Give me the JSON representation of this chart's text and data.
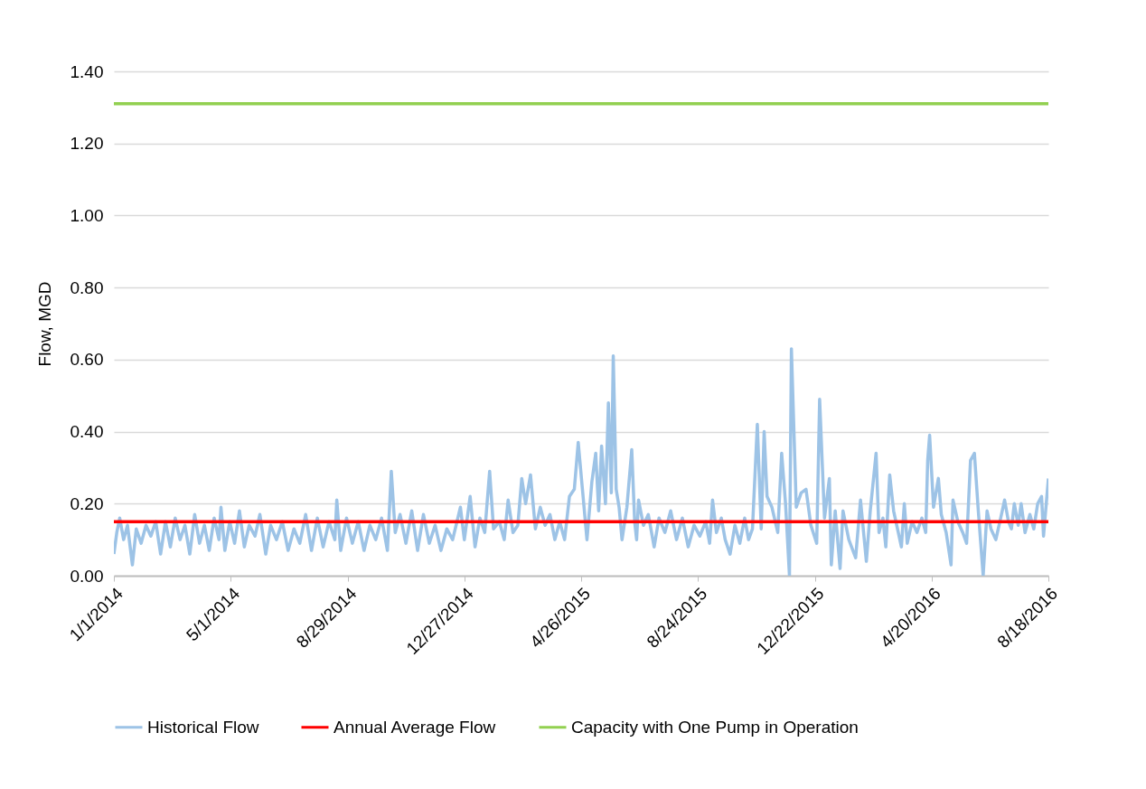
{
  "chart_data": {
    "type": "line",
    "ylabel": "Flow, MGD",
    "legend": "bottom",
    "grid": "y",
    "line_style": "solid",
    "xlim": [
      "2014-01-01",
      "2016-08-18"
    ],
    "xticks": [
      {
        "value": "2014-01-01",
        "label": "1/1/2014"
      },
      {
        "value": "2014-05-01",
        "label": "5/1/2014"
      },
      {
        "value": "2014-08-29",
        "label": "8/29/2014"
      },
      {
        "value": "2014-12-27",
        "label": "12/27/2014"
      },
      {
        "value": "2015-04-26",
        "label": "4/26/2015"
      },
      {
        "value": "2015-08-24",
        "label": "8/24/2015"
      },
      {
        "value": "2015-12-22",
        "label": "12/22/2015"
      },
      {
        "value": "2016-04-20",
        "label": "4/20/2016"
      },
      {
        "value": "2016-08-18",
        "label": "8/18/2016"
      }
    ],
    "ylim": [
      0,
      1.4
    ],
    "yticks": [
      {
        "value": 0,
        "label": "0.00"
      },
      {
        "value": 0.2,
        "label": "0.20"
      },
      {
        "value": 0.4,
        "label": "0.40"
      },
      {
        "value": 0.6,
        "label": "0.60"
      },
      {
        "value": 0.8,
        "label": "0.80"
      },
      {
        "value": 1,
        "label": "1.00"
      },
      {
        "value": 1.2,
        "label": "1.20"
      },
      {
        "value": 1.4,
        "label": "1.40"
      }
    ],
    "x": [
      "2014-01-01",
      "2014-01-04",
      "2014-01-07",
      "2014-01-11",
      "2014-01-15",
      "2014-01-20",
      "2014-01-24",
      "2014-01-29",
      "2014-02-03",
      "2014-02-08",
      "2014-02-13",
      "2014-02-18",
      "2014-02-23",
      "2014-02-28",
      "2014-03-05",
      "2014-03-10",
      "2014-03-15",
      "2014-03-20",
      "2014-03-25",
      "2014-03-30",
      "2014-04-04",
      "2014-04-09",
      "2014-04-14",
      "2014-04-19",
      "2014-04-21",
      "2014-04-25",
      "2014-04-30",
      "2014-05-05",
      "2014-05-10",
      "2014-05-15",
      "2014-05-20",
      "2014-05-26",
      "2014-05-31",
      "2014-06-06",
      "2014-06-11",
      "2014-06-17",
      "2014-06-23",
      "2014-06-29",
      "2014-07-05",
      "2014-07-11",
      "2014-07-17",
      "2014-07-23",
      "2014-07-29",
      "2014-08-04",
      "2014-08-10",
      "2014-08-16",
      "2014-08-18",
      "2014-08-22",
      "2014-08-28",
      "2014-09-03",
      "2014-09-09",
      "2014-09-15",
      "2014-09-21",
      "2014-09-27",
      "2014-10-03",
      "2014-10-09",
      "2014-10-13",
      "2014-10-17",
      "2014-10-22",
      "2014-10-28",
      "2014-11-03",
      "2014-11-09",
      "2014-11-15",
      "2014-11-21",
      "2014-11-27",
      "2014-12-03",
      "2014-12-09",
      "2014-12-15",
      "2014-12-23",
      "2014-12-27",
      "2015-01-02",
      "2015-01-07",
      "2015-01-12",
      "2015-01-17",
      "2015-01-22",
      "2015-01-26",
      "2015-02-01",
      "2015-02-06",
      "2015-02-10",
      "2015-02-15",
      "2015-02-20",
      "2015-02-24",
      "2015-02-28",
      "2015-03-05",
      "2015-03-10",
      "2015-03-15",
      "2015-03-20",
      "2015-03-25",
      "2015-03-30",
      "2015-04-04",
      "2015-04-09",
      "2015-04-14",
      "2015-04-19",
      "2015-04-23",
      "2015-04-27",
      "2015-05-02",
      "2015-05-07",
      "2015-05-11",
      "2015-05-14",
      "2015-05-17",
      "2015-05-21",
      "2015-05-24",
      "2015-05-27",
      "2015-05-29",
      "2015-06-01",
      "2015-06-04",
      "2015-06-07",
      "2015-06-12",
      "2015-06-17",
      "2015-06-20",
      "2015-06-22",
      "2015-06-24",
      "2015-06-29",
      "2015-07-04",
      "2015-07-10",
      "2015-07-15",
      "2015-07-21",
      "2015-07-27",
      "2015-08-02",
      "2015-08-08",
      "2015-08-14",
      "2015-08-20",
      "2015-08-26",
      "2015-09-01",
      "2015-09-05",
      "2015-09-08",
      "2015-09-12",
      "2015-09-17",
      "2015-09-21",
      "2015-09-26",
      "2015-10-01",
      "2015-10-06",
      "2015-10-11",
      "2015-10-15",
      "2015-10-19",
      "2015-10-24",
      "2015-10-28",
      "2015-10-31",
      "2015-11-03",
      "2015-11-08",
      "2015-11-14",
      "2015-11-18",
      "2015-11-22",
      "2015-11-26",
      "2015-11-28",
      "2015-12-03",
      "2015-12-08",
      "2015-12-13",
      "2015-12-18",
      "2015-12-24",
      "2015-12-27",
      "2016-01-01",
      "2016-01-06",
      "2016-01-08",
      "2016-01-12",
      "2016-01-17",
      "2016-01-20",
      "2016-01-26",
      "2016-02-02",
      "2016-02-07",
      "2016-02-13",
      "2016-02-17",
      "2016-02-23",
      "2016-02-26",
      "2016-03-01",
      "2016-03-04",
      "2016-03-08",
      "2016-03-12",
      "2016-03-16",
      "2016-03-20",
      "2016-03-23",
      "2016-03-26",
      "2016-03-31",
      "2016-04-05",
      "2016-04-10",
      "2016-04-14",
      "2016-04-16",
      "2016-04-18",
      "2016-04-22",
      "2016-04-27",
      "2016-04-30",
      "2016-05-05",
      "2016-05-10",
      "2016-05-12",
      "2016-05-17",
      "2016-05-22",
      "2016-05-26",
      "2016-05-30",
      "2016-06-03",
      "2016-06-07",
      "2016-06-12",
      "2016-06-16",
      "2016-06-20",
      "2016-06-25",
      "2016-06-30",
      "2016-07-04",
      "2016-07-08",
      "2016-07-11",
      "2016-07-14",
      "2016-07-18",
      "2016-07-21",
      "2016-07-25",
      "2016-07-30",
      "2016-08-03",
      "2016-08-07",
      "2016-08-11",
      "2016-08-13",
      "2016-08-18"
    ],
    "series": [
      {
        "name": "Historical Flow",
        "color": "#9dc3e6",
        "values": [
          0.06,
          0.12,
          0.16,
          0.1,
          0.14,
          0.03,
          0.13,
          0.09,
          0.14,
          0.11,
          0.15,
          0.06,
          0.15,
          0.08,
          0.16,
          0.1,
          0.14,
          0.06,
          0.17,
          0.09,
          0.14,
          0.07,
          0.16,
          0.1,
          0.19,
          0.07,
          0.15,
          0.09,
          0.18,
          0.08,
          0.14,
          0.11,
          0.17,
          0.06,
          0.14,
          0.1,
          0.15,
          0.07,
          0.13,
          0.09,
          0.17,
          0.07,
          0.16,
          0.08,
          0.15,
          0.1,
          0.21,
          0.07,
          0.16,
          0.09,
          0.15,
          0.07,
          0.14,
          0.1,
          0.16,
          0.07,
          0.29,
          0.12,
          0.17,
          0.09,
          0.18,
          0.07,
          0.17,
          0.09,
          0.14,
          0.07,
          0.13,
          0.1,
          0.19,
          0.1,
          0.22,
          0.08,
          0.16,
          0.12,
          0.29,
          0.13,
          0.15,
          0.1,
          0.21,
          0.12,
          0.14,
          0.27,
          0.2,
          0.28,
          0.13,
          0.19,
          0.14,
          0.17,
          0.1,
          0.15,
          0.1,
          0.22,
          0.24,
          0.37,
          0.25,
          0.1,
          0.26,
          0.34,
          0.18,
          0.36,
          0.2,
          0.48,
          0.23,
          0.61,
          0.24,
          0.19,
          0.1,
          0.19,
          0.35,
          0.15,
          0.1,
          0.21,
          0.14,
          0.17,
          0.08,
          0.16,
          0.12,
          0.18,
          0.1,
          0.16,
          0.08,
          0.14,
          0.11,
          0.15,
          0.09,
          0.21,
          0.12,
          0.16,
          0.1,
          0.06,
          0.14,
          0.09,
          0.16,
          0.1,
          0.13,
          0.42,
          0.13,
          0.4,
          0.22,
          0.19,
          0.12,
          0.34,
          0.2,
          0.0,
          0.63,
          0.19,
          0.23,
          0.24,
          0.14,
          0.09,
          0.49,
          0.16,
          0.27,
          0.03,
          0.18,
          0.02,
          0.18,
          0.1,
          0.05,
          0.21,
          0.04,
          0.18,
          0.34,
          0.12,
          0.16,
          0.08,
          0.28,
          0.18,
          0.13,
          0.08,
          0.2,
          0.09,
          0.15,
          0.12,
          0.16,
          0.12,
          0.32,
          0.39,
          0.19,
          0.27,
          0.17,
          0.12,
          0.03,
          0.21,
          0.15,
          0.12,
          0.09,
          0.32,
          0.34,
          0.18,
          0.0,
          0.18,
          0.13,
          0.1,
          0.16,
          0.21,
          0.15,
          0.13,
          0.2,
          0.14,
          0.2,
          0.12,
          0.17,
          0.13,
          0.2,
          0.22,
          0.11,
          0.27
        ]
      },
      {
        "name": "Annual Average Flow",
        "color": "#ff0000",
        "x": [
          "2014-01-01",
          "2016-08-18"
        ],
        "values": [
          0.15,
          0.15
        ]
      },
      {
        "name": "Capacity with One Pump in Operation",
        "color": "#92d050",
        "x": [
          "2014-01-01",
          "2016-08-18"
        ],
        "values": [
          1.31,
          1.31
        ]
      }
    ]
  }
}
